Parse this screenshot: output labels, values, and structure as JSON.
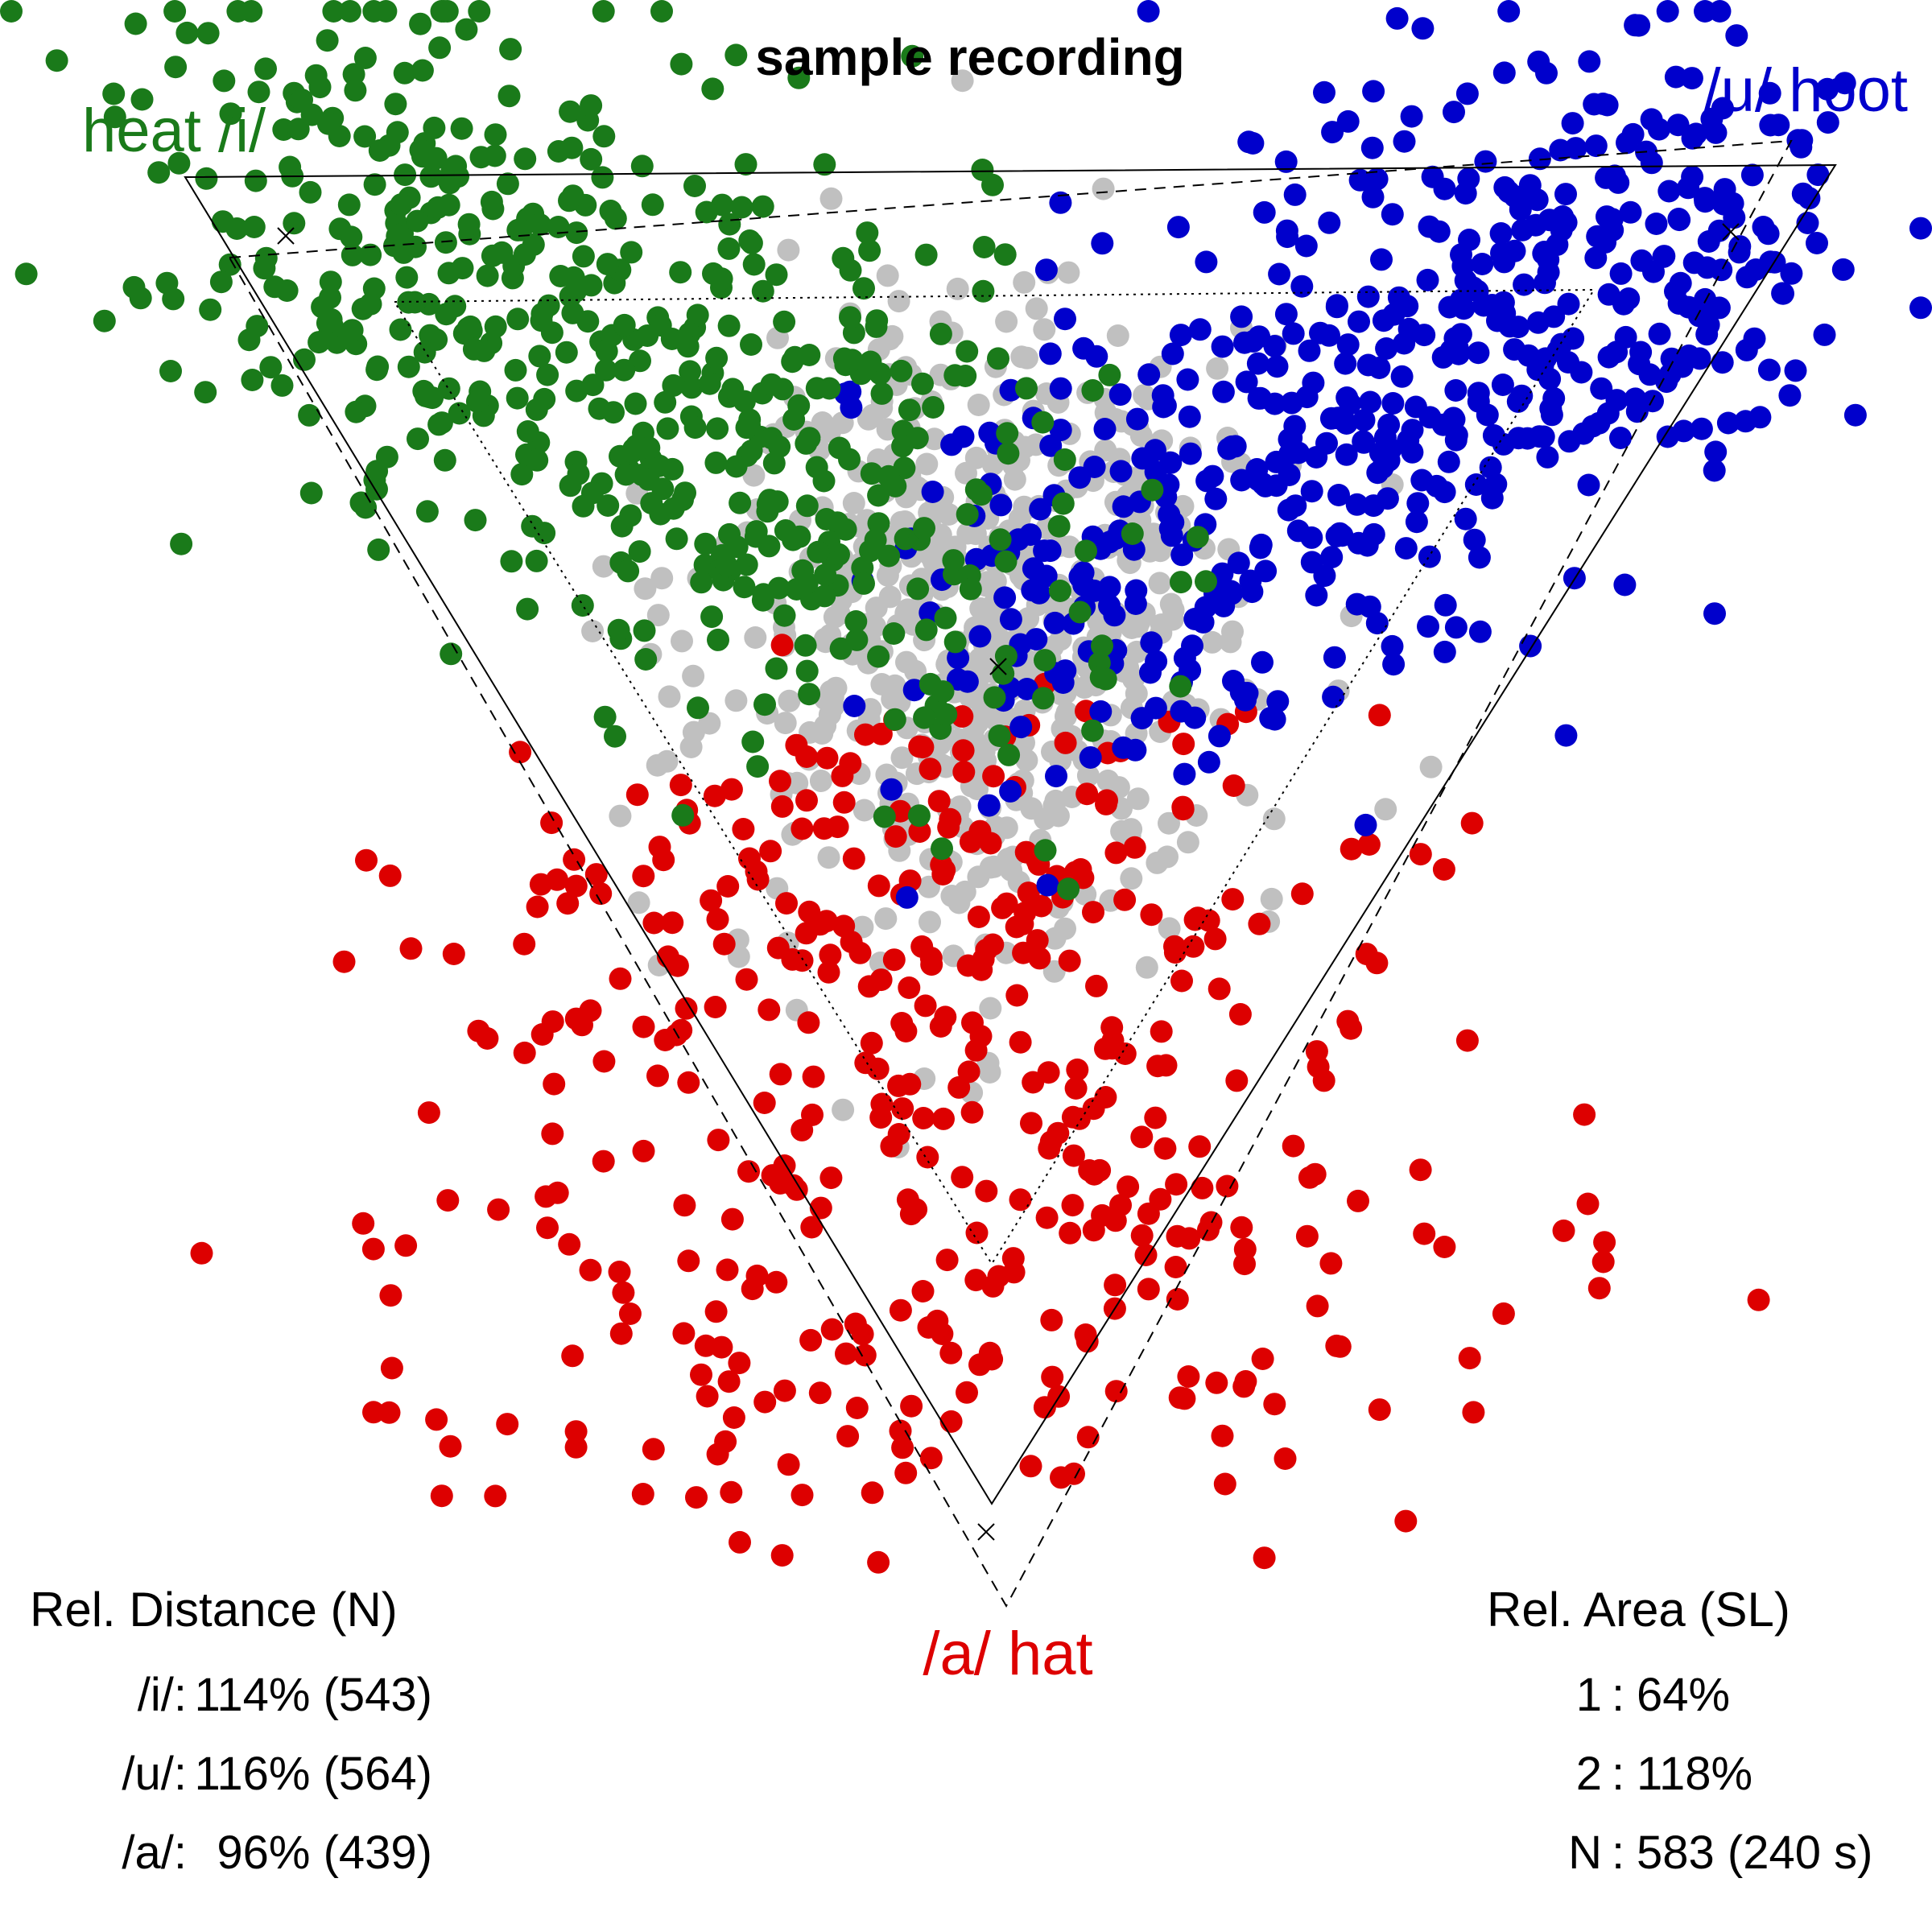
{
  "chart_data": {
    "type": "scatter",
    "title": "sample recording",
    "vowels": {
      "i": {
        "label": "heat /i/",
        "color": "#1a7a1a"
      },
      "u": {
        "label": "/u/ hoot",
        "color": "#0000cc"
      },
      "a": {
        "label": "/a/ hat",
        "color": "#dd0000"
      }
    },
    "neutral_color": "#c0c0c0",
    "point_counts": {
      "i": 543,
      "u": 564,
      "a": 439,
      "neutral": 583
    },
    "rel_distance": {
      "header": "Rel. Distance (N)",
      "rows": [
        {
          "label": "/i/:",
          "value": "114% (543)"
        },
        {
          "label": "/u/:",
          "value": "116% (564)"
        },
        {
          "label": "/a/:",
          "value": " 96% (439)"
        }
      ]
    },
    "rel_area": {
      "header": "Rel. Area (SL)",
      "rows": [
        {
          "label": "1",
          "value": "64%"
        },
        {
          "label": "2",
          "value": "118%"
        },
        {
          "label": "N",
          "value": "583 (240 s)"
        }
      ]
    }
  }
}
